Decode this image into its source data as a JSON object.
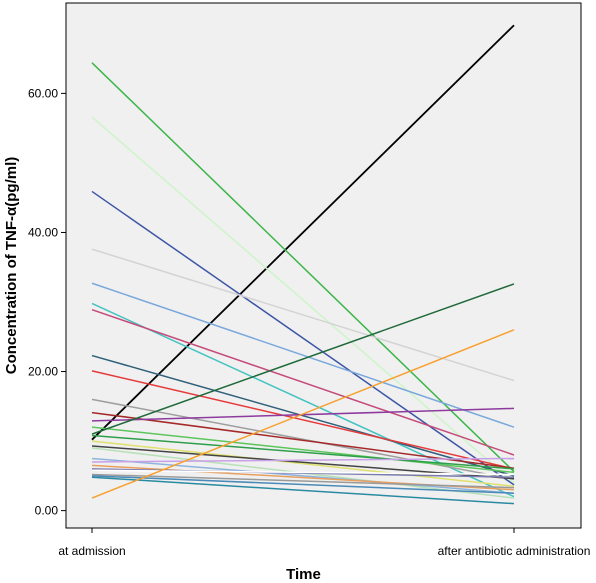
{
  "chart_data": {
    "type": "line",
    "title": "",
    "xlabel": "Time",
    "ylabel": "Concentration of TNF-α(pg/ml)",
    "categories": [
      "at admission",
      "after antibiotic administration"
    ],
    "yticks": [
      "0.00",
      "20.00",
      "40.00",
      "60.00"
    ],
    "ylim": [
      -2.5,
      73
    ],
    "grid": false,
    "legend": "none",
    "background_color": "#f0f0f0",
    "series": [
      {
        "values": [
          10.2,
          69.8
        ],
        "color": "#000000"
      },
      {
        "values": [
          64.4,
          5.6
        ],
        "color": "#3cb54a"
      },
      {
        "values": [
          56.6,
          4.0
        ],
        "color": "#ccf5c8"
      },
      {
        "values": [
          45.9,
          3.7
        ],
        "color": "#3e56a6"
      },
      {
        "values": [
          37.6,
          18.7
        ],
        "color": "#d3d3d3"
      },
      {
        "values": [
          32.7,
          12.0
        ],
        "color": "#79a8dc"
      },
      {
        "values": [
          29.8,
          2.0
        ],
        "color": "#44c3c0"
      },
      {
        "values": [
          28.9,
          8.0
        ],
        "color": "#c44b7a"
      },
      {
        "values": [
          22.3,
          5.0
        ],
        "color": "#2f5f7a"
      },
      {
        "values": [
          20.1,
          6.0
        ],
        "color": "#e63a3a"
      },
      {
        "values": [
          16.0,
          4.5
        ],
        "color": "#9e9e9e"
      },
      {
        "values": [
          14.1,
          6.1
        ],
        "color": "#a52a2a"
      },
      {
        "values": [
          12.9,
          14.7
        ],
        "color": "#8e3a9e"
      },
      {
        "values": [
          12.0,
          5.5
        ],
        "color": "#5cc55c"
      },
      {
        "values": [
          11.0,
          32.6
        ],
        "color": "#1f6a3a"
      },
      {
        "values": [
          10.8,
          6.0
        ],
        "color": "#2e9e4a"
      },
      {
        "values": [
          10.0,
          3.5
        ],
        "color": "#e0e070"
      },
      {
        "values": [
          9.3,
          4.6
        ],
        "color": "#444444"
      },
      {
        "values": [
          9.0,
          1.8
        ],
        "color": "#b8e0b8"
      },
      {
        "values": [
          7.5,
          2.5
        ],
        "color": "#8fb4dc"
      },
      {
        "values": [
          7.0,
          7.5
        ],
        "color": "#c8a0e8"
      },
      {
        "values": [
          6.5,
          3.0
        ],
        "color": "#e8a060"
      },
      {
        "values": [
          6.0,
          4.8
        ],
        "color": "#7a7ab0"
      },
      {
        "values": [
          5.8,
          5.2
        ],
        "color": "#ffffff"
      },
      {
        "values": [
          5.2,
          3.3
        ],
        "color": "#9a9a9a"
      },
      {
        "values": [
          5.0,
          2.5
        ],
        "color": "#4a8ab8"
      },
      {
        "values": [
          4.8,
          1.0
        ],
        "color": "#2a8aa0"
      },
      {
        "values": [
          1.8,
          26.0
        ],
        "color": "#f7a030"
      }
    ]
  }
}
